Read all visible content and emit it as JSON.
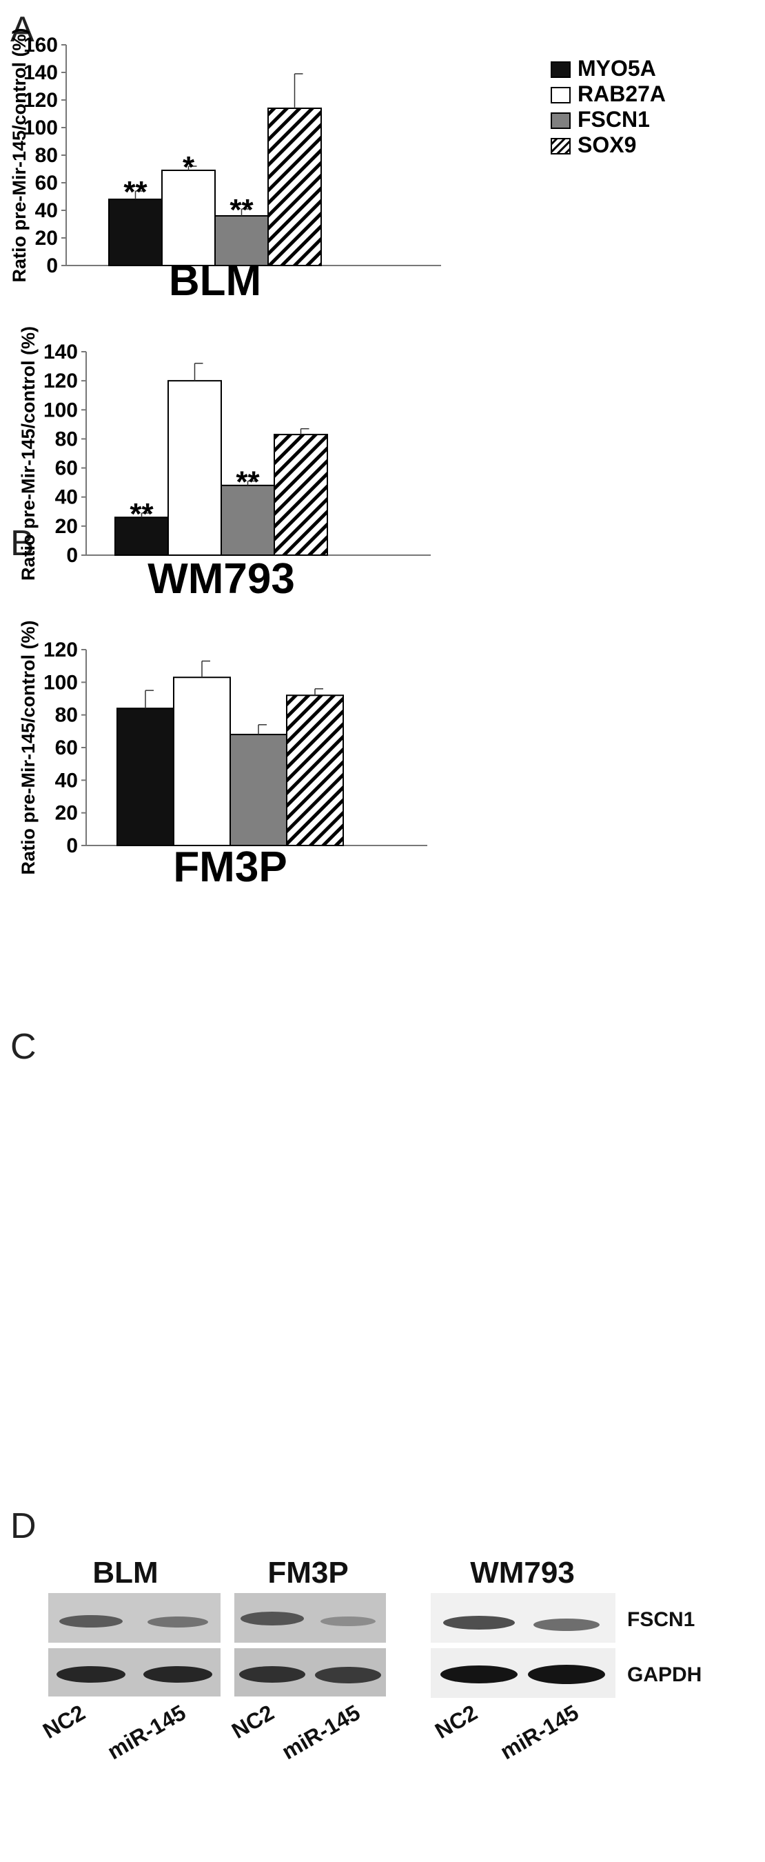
{
  "chart_data": [
    {
      "type": "bar",
      "panel": "A",
      "cell_line": "BLM",
      "ylabel": "Ratio pre-Mir-145/control (%)",
      "ylim": [
        0,
        160
      ],
      "ytick_step": 20,
      "categories": [
        "MYO5A",
        "RAB27A",
        "FSCN1",
        "SOX9"
      ],
      "values": [
        48,
        69,
        36,
        114
      ],
      "errors": [
        6,
        3,
        5,
        25
      ],
      "significance": [
        "**",
        "*",
        "**",
        ""
      ],
      "legend": {
        "position": "top-right"
      }
    },
    {
      "type": "bar",
      "panel": "B",
      "cell_line": "WM793",
      "ylabel": "Ratio pre-Mir-145/control (%)",
      "ylim": [
        0,
        140
      ],
      "ytick_step": 20,
      "categories": [
        "MYO5A",
        "RAB27A",
        "FSCN1",
        "SOX9"
      ],
      "values": [
        26,
        120,
        48,
        83
      ],
      "errors": [
        3,
        12,
        3,
        4
      ],
      "significance": [
        "**",
        "",
        "**",
        ""
      ]
    },
    {
      "type": "bar",
      "panel": "C",
      "cell_line": "FM3P",
      "ylabel": "Ratio pre-Mir-145/control (%)",
      "ylim": [
        0,
        120
      ],
      "ytick_step": 20,
      "categories": [
        "MYO5A",
        "RAB27A",
        "FSCN1",
        "SOX9"
      ],
      "values": [
        84,
        103,
        68,
        92
      ],
      "errors": [
        11,
        10,
        6,
        4
      ],
      "significance": [
        "",
        "",
        "",
        ""
      ]
    }
  ],
  "series_styles": [
    {
      "name": "MYO5A",
      "fill": "#111111",
      "pattern": "solid"
    },
    {
      "name": "RAB27A",
      "fill": "#ffffff",
      "pattern": "solid"
    },
    {
      "name": "FSCN1",
      "fill": "#808080",
      "pattern": "solid"
    },
    {
      "name": "SOX9",
      "fill": "#ffffff",
      "pattern": "diagonal-hatch"
    }
  ],
  "blot_panel": {
    "letter": "D",
    "cell_lines": [
      "BLM",
      "FM3P",
      "WM793"
    ],
    "proteins": [
      "FSCN1",
      "GAPDH"
    ],
    "lanes": [
      "NC2",
      "miR-145"
    ]
  }
}
